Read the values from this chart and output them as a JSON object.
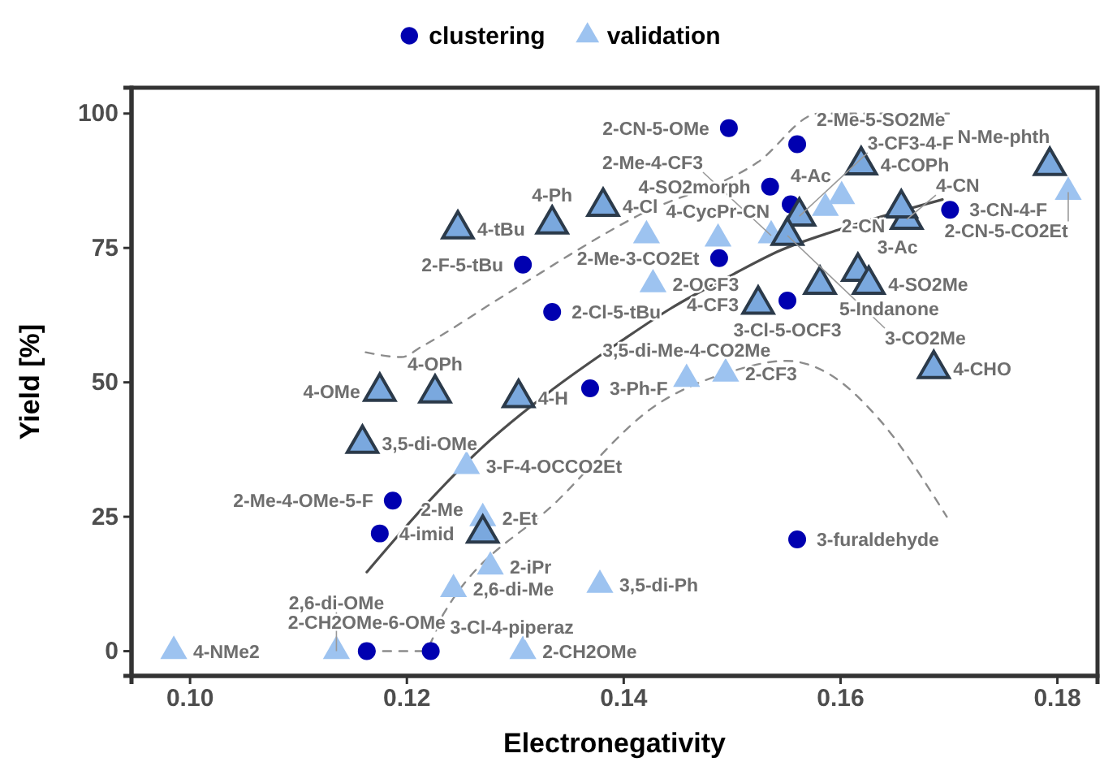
{
  "chart_data": {
    "type": "scatter",
    "xlabel": "Electronegativity",
    "ylabel": "Yield [%]",
    "xlim": [
      0.0946,
      0.1837
    ],
    "ylim": [
      -4.6,
      104.8
    ],
    "xticks": [
      {
        "value": 0.1,
        "label": "0.10"
      },
      {
        "value": 0.12,
        "label": "0.12"
      },
      {
        "value": 0.14,
        "label": "0.14"
      },
      {
        "value": 0.16,
        "label": "0.16"
      },
      {
        "value": 0.18,
        "label": "0.18"
      }
    ],
    "yticks": [
      0,
      25,
      50,
      75,
      100
    ],
    "grid": false,
    "legend": "top",
    "series": [
      {
        "name": "clustering",
        "marker": "circle",
        "color": "#0000b0",
        "x": [
          0.1497,
          0.156,
          0.1535,
          0.1554,
          0.1488,
          0.1551,
          0.1307,
          0.1334,
          0.1701,
          0.1369,
          0.156,
          0.1187,
          0.1175,
          0.1163,
          0.1222
        ],
        "values": [
          97.3,
          94.3,
          86.4,
          83.1,
          73.1,
          65.2,
          71.9,
          63.1,
          82.1,
          48.9,
          20.8,
          28.0,
          21.9,
          0,
          0
        ]
      },
      {
        "name": "validation",
        "marker": "triangle",
        "color": "#9dc3f0",
        "x": [
          0.0985,
          0.1135,
          0.1307,
          0.1378,
          0.1243,
          0.1277,
          0.127,
          0.1255,
          0.1458,
          0.1494,
          0.1421,
          0.1487,
          0.1427,
          0.1536,
          0.1601,
          0.1586,
          0.181
        ],
        "values": [
          0,
          0,
          0,
          12.3,
          11.5,
          15.7,
          24.7,
          34.4,
          50.6,
          51.6,
          77.3,
          76.7,
          68.2,
          77.3,
          84.6,
          82.4,
          85.4
        ]
      },
      {
        "marker": "triangle",
        "color": "#7aa8de",
        "x": [
          0.1247,
          0.1334,
          0.1381,
          0.1175,
          0.1226,
          0.1159,
          0.1303,
          0.127,
          0.1524,
          0.1581,
          0.1616,
          0.1626,
          0.1686,
          0.1619,
          0.1562,
          0.1551,
          0.1661,
          0.1656,
          0.1793
        ],
        "values": [
          78.5,
          79.4,
          82.7,
          48.3,
          48.0,
          38.6,
          47.1,
          21.9,
          64.5,
          68.2,
          70.6,
          68.2,
          52.5,
          90.4,
          80.9,
          77.3,
          80.3,
          82.4,
          90.3
        ]
      },
      {
        "type": "line",
        "line_style": "solid",
        "color": "#4d4d4d",
        "x": [
          0.1163,
          0.1214,
          0.127,
          0.133,
          0.14,
          0.1443,
          0.15,
          0.1544,
          0.16,
          0.1694
        ],
        "values": [
          14.7,
          26.5,
          38,
          48,
          58,
          63.7,
          70,
          74.5,
          78.5,
          84
        ]
      },
      {
        "type": "line",
        "line_style": "dashed",
        "color": "#8c8c8c",
        "x": [
          0.1162,
          0.1195,
          0.1214,
          0.1294,
          0.1413,
          0.1524,
          0.158,
          0.17
        ],
        "values": [
          55.6,
          54.7,
          56.7,
          66.7,
          81,
          91,
          100,
          100
        ]
      },
      {
        "type": "line",
        "line_style": "dashed",
        "color": "#8c8c8c",
        "x": [
          0.1163,
          0.1215,
          0.1234,
          0.1339,
          0.1428,
          0.1499,
          0.155,
          0.1589,
          0.1634,
          0.1698
        ],
        "values": [
          0,
          0,
          7,
          28,
          45.5,
          52,
          54,
          51.6,
          43.5,
          25
        ]
      }
    ],
    "annotations": [
      {
        "text": "2-CN-5-OMe",
        "x": 0.1497,
        "y": 97.3
      },
      {
        "text": "2-Me-5-SO2Me",
        "x": 0.156,
        "y": 94.3
      },
      {
        "text": "4-SO2morph",
        "x": 0.1535,
        "y": 86.4
      },
      {
        "text": "4-Ac",
        "x": 0.1554,
        "y": 83.1
      },
      {
        "text": "2-Me-3-CO2Et",
        "x": 0.1488,
        "y": 73.1
      },
      {
        "text": "3-Cl-5-OCF3",
        "x": 0.1551,
        "y": 65.2
      },
      {
        "text": "2-F-5-tBu",
        "x": 0.1307,
        "y": 71.9
      },
      {
        "text": "2-Cl-5-tBu",
        "x": 0.1334,
        "y": 63.1
      },
      {
        "text": "3-CN-4-F",
        "x": 0.1701,
        "y": 82.1
      },
      {
        "text": "3-Ph-F",
        "x": 0.1369,
        "y": 48.9
      },
      {
        "text": "3-furaldehyde",
        "x": 0.156,
        "y": 20.8
      },
      {
        "text": "2-Me-4-OMe-5-F",
        "x": 0.1187,
        "y": 28.0
      },
      {
        "text": "4-imid",
        "x": 0.1175,
        "y": 21.9
      },
      {
        "text": "2-CH2OMe-6-OMe",
        "x": 0.1163,
        "y": 0
      },
      {
        "text": "3-Cl-4-piperaz",
        "x": 0.1222,
        "y": 0
      },
      {
        "text": "4-NMe2",
        "x": 0.0985,
        "y": 0
      },
      {
        "text": "2,6-di-OMe",
        "x": 0.1135,
        "y": 0
      },
      {
        "text": "2-CH2OMe",
        "x": 0.1307,
        "y": 0
      },
      {
        "text": "3,5-di-Ph",
        "x": 0.1378,
        "y": 12.3
      },
      {
        "text": "2,6-di-Me",
        "x": 0.1243,
        "y": 11.5
      },
      {
        "text": "2-iPr",
        "x": 0.1277,
        "y": 15.7
      },
      {
        "text": "2-Et",
        "x": 0.127,
        "y": 24.7
      },
      {
        "text": "3-F-4-OCCO2Et",
        "x": 0.1255,
        "y": 34.4
      },
      {
        "text": "3,5-di-Me-4-CO2Me",
        "x": 0.1458,
        "y": 50.6
      },
      {
        "text": "2-CF3",
        "x": 0.1494,
        "y": 51.6
      },
      {
        "text": "4-CycPr-CN",
        "x": 0.1421,
        "y": 77.3
      },
      {
        "text": "2-OCF3",
        "x": 0.1427,
        "y": 68.2
      },
      {
        "text": "2-Me-4-CF3",
        "x": 0.1536,
        "y": 77.3
      },
      {
        "text": "2-CN",
        "x": 0.1601,
        "y": 84.6
      },
      {
        "text": "2-CN-5-CO2Et",
        "x": 0.181,
        "y": 85.4
      },
      {
        "text": "4-tBu",
        "x": 0.1247,
        "y": 78.5
      },
      {
        "text": "4-Ph",
        "x": 0.1334,
        "y": 79.4
      },
      {
        "text": "4-Cl",
        "x": 0.1381,
        "y": 82.7
      },
      {
        "text": "4-OMe",
        "x": 0.1175,
        "y": 48.3
      },
      {
        "text": "4-OPh",
        "x": 0.1226,
        "y": 48.0
      },
      {
        "text": "3,5-di-OMe",
        "x": 0.1159,
        "y": 38.6
      },
      {
        "text": "4-H",
        "x": 0.1303,
        "y": 47.1
      },
      {
        "text": "2-Me",
        "x": 0.127,
        "y": 21.9
      },
      {
        "text": "4-CF3",
        "x": 0.1524,
        "y": 64.5
      },
      {
        "text": "5-Indanone",
        "x": 0.1581,
        "y": 68.2
      },
      {
        "text": "3-Ac",
        "x": 0.1616,
        "y": 70.6
      },
      {
        "text": "4-SO2Me",
        "x": 0.1626,
        "y": 68.2
      },
      {
        "text": "4-CHO",
        "x": 0.1686,
        "y": 52.5
      },
      {
        "text": "4-COPh",
        "x": 0.1619,
        "y": 90.4
      },
      {
        "text": "3-CF3-4-F",
        "x": 0.1562,
        "y": 80.9
      },
      {
        "text": "3-CO2Me",
        "x": 0.1551,
        "y": 77.3
      },
      {
        "text": "4-CN",
        "x": 0.1661,
        "y": 80.3
      },
      {
        "text": "N-Me-phth",
        "x": 0.1793,
        "y": 90.3
      }
    ]
  }
}
